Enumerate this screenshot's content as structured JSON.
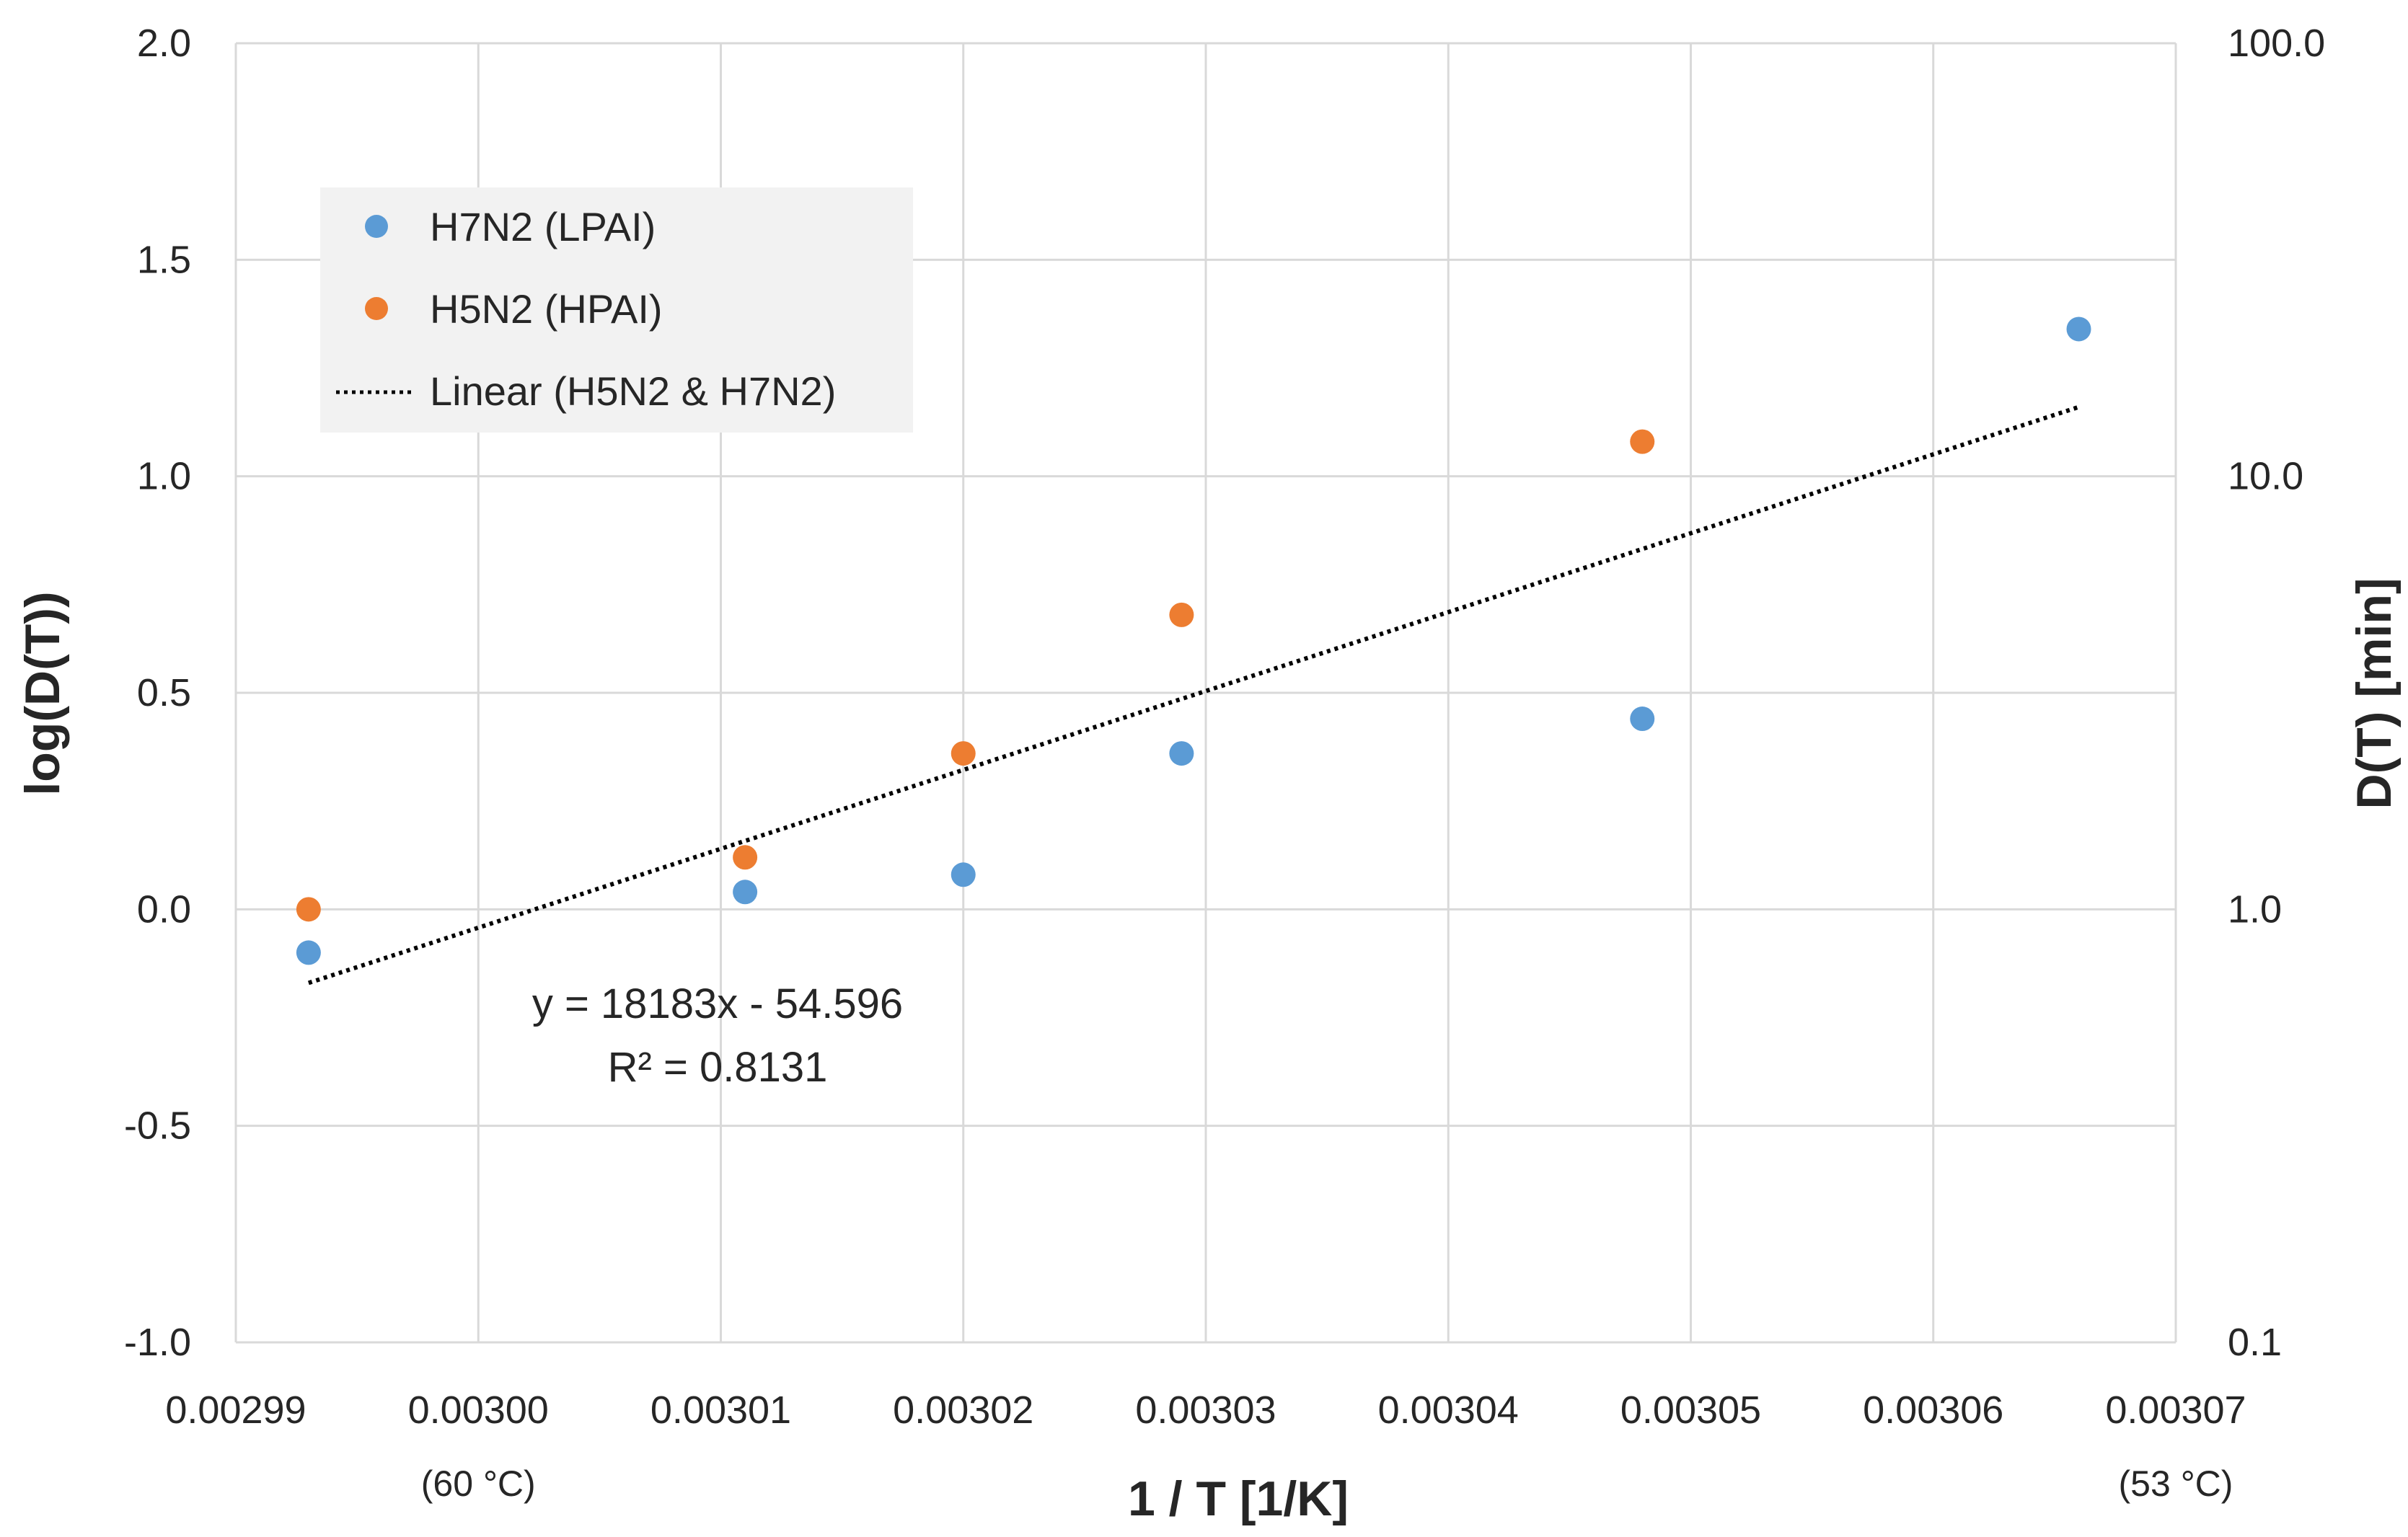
{
  "chart_data": {
    "type": "scatter",
    "title": "",
    "xlabel": "1 / T [1/K]",
    "ylabel": "log(D(T))",
    "y2label": "D(T) [min]",
    "xlim": [
      0.00299,
      0.00307
    ],
    "ylim": [
      -1.0,
      2.0
    ],
    "grid": true,
    "x_ticks": [
      "0.00299",
      "0.00300",
      "0.00301",
      "0.00302",
      "0.00303",
      "0.00304",
      "0.00305",
      "0.00306",
      "0.00307"
    ],
    "y_ticks": [
      "-1.0",
      "-0.5",
      "0.0",
      "0.5",
      "1.0",
      "1.5",
      "2.0"
    ],
    "y2_ticks": [
      "0.1",
      "1.0",
      "10.0",
      "100.0"
    ],
    "x_annotations": [
      {
        "x": 0.003,
        "text": "(60 °C)"
      },
      {
        "x": 0.00307,
        "text": "(53 °C)"
      }
    ],
    "legend_position": "top-left",
    "series": [
      {
        "name": "H7N2 (LPAI)",
        "color": "#5b9bd5",
        "points": [
          {
            "x": 0.002993,
            "y": -0.1
          },
          {
            "x": 0.003011,
            "y": 0.04
          },
          {
            "x": 0.00302,
            "y": 0.08
          },
          {
            "x": 0.003029,
            "y": 0.36
          },
          {
            "x": 0.003048,
            "y": 0.44
          },
          {
            "x": 0.003066,
            "y": 1.34
          }
        ]
      },
      {
        "name": "H5N2 (HPAI)",
        "color": "#ed7d31",
        "points": [
          {
            "x": 0.002993,
            "y": 0.0
          },
          {
            "x": 0.003011,
            "y": 0.12
          },
          {
            "x": 0.00302,
            "y": 0.36
          },
          {
            "x": 0.003029,
            "y": 0.68
          },
          {
            "x": 0.003048,
            "y": 1.08
          }
        ]
      }
    ],
    "trendline": {
      "name": "Linear (H5N2 & H7N2)",
      "color": "#000000",
      "x_range": [
        0.002993,
        0.003066
      ],
      "y_range": [
        -0.17,
        1.16
      ],
      "equation": "y = 18183x - 54.596",
      "r_squared": "R² = 0.8131"
    }
  }
}
